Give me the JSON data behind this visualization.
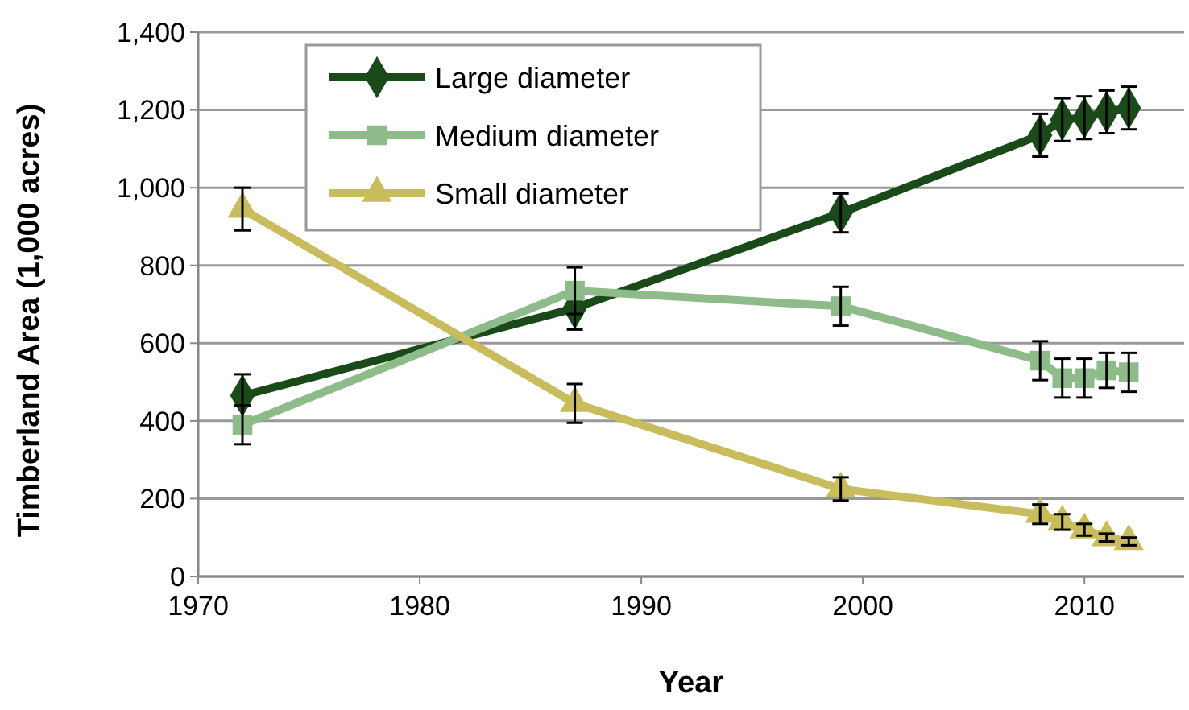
{
  "chart_data": {
    "type": "line",
    "xlabel": "Year",
    "ylabel": "Timberland Area (1,000 acres)",
    "x": [
      1972,
      1987,
      1999,
      2008,
      2009,
      2010,
      2011,
      2012
    ],
    "series": [
      {
        "name": "Large diameter",
        "color": "#1a4a1a",
        "marker": "diamond",
        "values": [
          465,
          690,
          935,
          1135,
          1175,
          1180,
          1195,
          1205
        ],
        "errors": [
          55,
          55,
          50,
          55,
          55,
          55,
          55,
          55
        ]
      },
      {
        "name": "Medium diameter",
        "color": "#8dbb8a",
        "marker": "square",
        "values": [
          390,
          735,
          695,
          555,
          510,
          510,
          530,
          525
        ],
        "errors": [
          50,
          60,
          50,
          50,
          50,
          50,
          45,
          50
        ]
      },
      {
        "name": "Small diameter",
        "color": "#c9bc5c",
        "marker": "triangle",
        "values": [
          945,
          445,
          225,
          160,
          140,
          120,
          100,
          90
        ],
        "errors": [
          55,
          50,
          30,
          25,
          20,
          15,
          10,
          10
        ]
      }
    ],
    "xlim": [
      1970,
      2014.5
    ],
    "xticks": [
      1970,
      1980,
      1990,
      2000,
      2010
    ],
    "ylim": [
      0,
      1400
    ],
    "yticks": [
      0,
      200,
      400,
      600,
      800,
      {
        "value": 1000,
        "label": "1,000"
      },
      {
        "value": 1200,
        "label": "1,200"
      },
      {
        "value": 1400,
        "label": "1,400"
      }
    ],
    "grid": "y",
    "legend": "top left",
    "line_style": "solid"
  }
}
